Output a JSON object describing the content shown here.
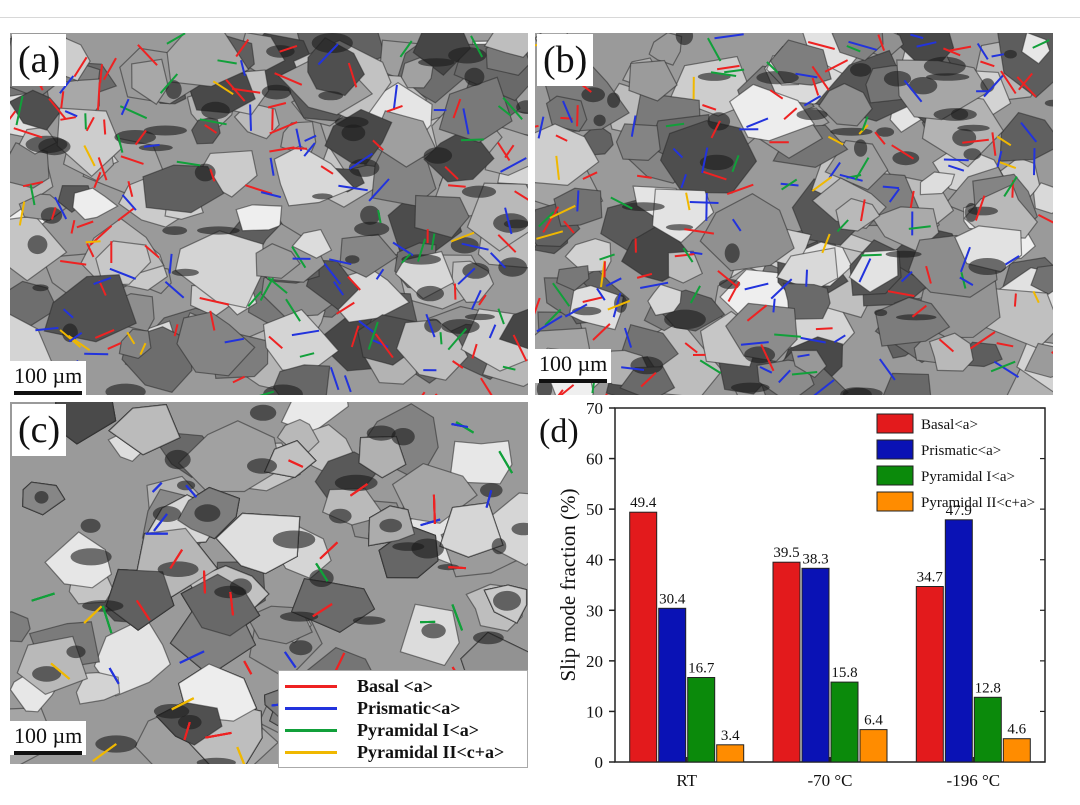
{
  "panels": [
    {
      "label": "(a)",
      "scale": "100 µm"
    },
    {
      "label": "(b)",
      "scale": "100 µm"
    },
    {
      "label": "(c)",
      "scale": "100 µm"
    }
  ],
  "panel_d_label": "(d)",
  "trace_key": [
    {
      "label": "Basal <a>",
      "color": "#ee2222"
    },
    {
      "label": "Prismatic<a>",
      "color": "#2233dd"
    },
    {
      "label": "Pyramidal I<a>",
      "color": "#11a03a"
    },
    {
      "label": "Pyramidal II<c+a>",
      "color": "#f0b800"
    }
  ],
  "chart_data": {
    "type": "bar",
    "categories": [
      "RT",
      "-70 °C",
      "-196 °C"
    ],
    "series": [
      {
        "name": "Basal<a>",
        "color": "#e31a1c",
        "values": [
          49.4,
          39.5,
          34.7
        ]
      },
      {
        "name": "Prismatic<a>",
        "color": "#0a12b5",
        "values": [
          30.4,
          38.3,
          47.9
        ]
      },
      {
        "name": "Pyramidal I<a>",
        "color": "#0b8a0b",
        "values": [
          16.7,
          15.8,
          12.8
        ]
      },
      {
        "name": "Pyramidal II<c+a>",
        "color": "#ff8c00",
        "values": [
          3.4,
          6.4,
          4.6
        ]
      }
    ],
    "ylabel": "Slip mode fraction (%)",
    "xlabel": "",
    "ylim": [
      0,
      70
    ],
    "yticks": [
      0,
      10,
      20,
      30,
      40,
      50,
      60,
      70
    ],
    "legend": "top-right",
    "grid": false
  }
}
